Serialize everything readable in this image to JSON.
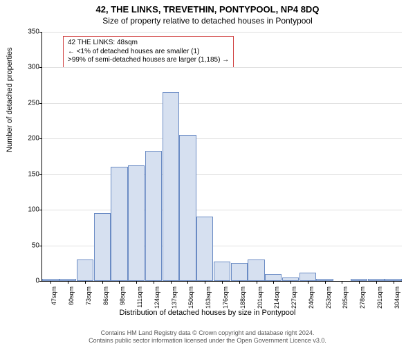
{
  "chart": {
    "type": "histogram",
    "title_line1": "42, THE LINKS, TREVETHIN, PONTYPOOL, NP4 8DQ",
    "title_line2": "Size of property relative to detached houses in Pontypool",
    "ylabel": "Number of detached properties",
    "xlabel": "Distribution of detached houses by size in Pontypool",
    "ylim": [
      0,
      350
    ],
    "ytick_step": 50,
    "background_color": "#ffffff",
    "grid_color": "#e0e0e0",
    "bar_fill": "#d6e0f0",
    "bar_border": "#6a8bc4",
    "x_categories": [
      "47sqm",
      "60sqm",
      "73sqm",
      "86sqm",
      "98sqm",
      "111sqm",
      "124sqm",
      "137sqm",
      "150sqm",
      "163sqm",
      "176sqm",
      "188sqm",
      "201sqm",
      "214sqm",
      "227sqm",
      "240sqm",
      "253sqm",
      "265sqm",
      "278sqm",
      "291sqm",
      "304sqm"
    ],
    "values": [
      3,
      3,
      30,
      95,
      160,
      162,
      183,
      265,
      205,
      90,
      27,
      25,
      30,
      10,
      5,
      12,
      3,
      0,
      3,
      3,
      3
    ],
    "annotation": {
      "line1": "42 THE LINKS: 48sqm",
      "line2": "← <1% of detached houses are smaller (1)",
      "line3": ">99% of semi-detached houses are larger (1,185) →",
      "border_color": "#d04040"
    },
    "footer_line1": "Contains HM Land Registry data © Crown copyright and database right 2024.",
    "footer_line2": "Contains public sector information licensed under the Open Government Licence v3.0.",
    "title_fontsize": 13,
    "subtitle_fontsize": 12,
    "label_fontsize": 11,
    "tick_fontsize": 10
  }
}
